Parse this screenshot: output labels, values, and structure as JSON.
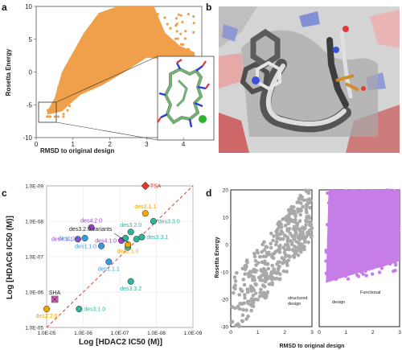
{
  "panels": {
    "a": "a",
    "b": "b",
    "c": "c",
    "d": "d"
  },
  "colors": {
    "orange": "#F0A04B",
    "gray_points": "#A9A9A9",
    "violet": "#C77DE8",
    "red": "#E0362B",
    "des_purple": "#9B3FC8",
    "des_blue": "#3A9AD9",
    "des_teal": "#2BB59A",
    "des_orange": "#F0A500",
    "sha_pink": "#E060C8"
  },
  "chart_data": [
    {
      "panel": "a",
      "type": "scatter",
      "xlabel": "RMSD to original design",
      "ylabel": "Rosetta Energy",
      "xlim": [
        0,
        4.5
      ],
      "ylim": [
        -10,
        10
      ],
      "xticks": [
        "0",
        "1",
        "2",
        "3",
        "4"
      ],
      "yticks": [
        "10",
        "5",
        "0",
        "-5",
        "-10"
      ],
      "series_color": "orange",
      "approx_envelope_points": [
        [
          0.3,
          -6
        ],
        [
          0.5,
          -4
        ],
        [
          0.7,
          0
        ],
        [
          1.0,
          3
        ],
        [
          1.3,
          6
        ],
        [
          1.7,
          9
        ],
        [
          2.2,
          10
        ],
        [
          3.2,
          10
        ],
        [
          3.5,
          6
        ],
        [
          3.9,
          4
        ],
        [
          4.3,
          3
        ]
      ],
      "highlight_box_x": [
        0.1,
        0.6
      ],
      "highlight_box_y": [
        -7.2,
        -4.4
      ]
    },
    {
      "panel": "c",
      "type": "scatter",
      "xlabel": "Log [HDAC2 IC50 (M)]",
      "ylabel": "Log [HDAC6 IC50 (M)]",
      "x_log": true,
      "y_log": true,
      "xlim": [
        1e-05,
        1e-09
      ],
      "ylim": [
        1e-05,
        1e-09
      ],
      "xticks": [
        "1.0E-05",
        "1.0E-06",
        "1.0E-07",
        "1.0E-08",
        "1.0E-09"
      ],
      "yticks": [
        "1.0E-09",
        "1.0E-08",
        "1.0E-07",
        "1.0E-06",
        "1.0E-05"
      ],
      "diagonal": true,
      "points": [
        {
          "label": "TSA",
          "x": 2e-08,
          "y": 1e-09,
          "color": "red",
          "shape": "diamond",
          "label_pos": "right"
        },
        {
          "label": "des4.2.0",
          "x": 6e-07,
          "y": 1.5e-08,
          "color": "des_purple",
          "shape": "circle",
          "label_pos": "top"
        },
        {
          "label": "des4.3.1",
          "x": 1.4e-06,
          "y": 3.2e-08,
          "color": "des_purple",
          "shape": "circle",
          "label_pos": "left"
        },
        {
          "label": "des1.1.2",
          "x": 9e-07,
          "y": 3e-08,
          "color": "des_blue",
          "shape": "circle",
          "label_pos": "left"
        },
        {
          "label": "des1.1.0",
          "x": 3.2e-07,
          "y": 5e-08,
          "color": "des_blue",
          "shape": "circle",
          "label_pos": "left"
        },
        {
          "label": "des1.1.1",
          "x": 2e-07,
          "y": 1.4e-07,
          "color": "des_blue",
          "shape": "circle",
          "label_pos": "bottom"
        },
        {
          "label": "des4.1.0",
          "x": 9e-08,
          "y": 3.5e-08,
          "color": "des_purple",
          "shape": "circle",
          "label_pos": "left"
        },
        {
          "label": "des3.2.0",
          "x": 5e-08,
          "y": 2e-08,
          "color": "des_teal",
          "shape": "circle",
          "label_pos": "top"
        },
        {
          "label": "",
          "x": 7e-08,
          "y": 3e-08,
          "color": "des_teal",
          "shape": "circle",
          "label_pos": "none"
        },
        {
          "label": "",
          "x": 3.5e-08,
          "y": 3.2e-08,
          "color": "des_teal",
          "shape": "circle",
          "label_pos": "none"
        },
        {
          "label": "",
          "x": 6e-08,
          "y": 5.5e-08,
          "color": "des_teal",
          "shape": "circle",
          "label_pos": "none"
        },
        {
          "label": "des3.3.1",
          "x": 2.5e-08,
          "y": 2.8e-08,
          "color": "des_teal",
          "shape": "circle",
          "label_pos": "right"
        },
        {
          "label": "des3.3.0",
          "x": 1.2e-08,
          "y": 1e-08,
          "color": "des_teal",
          "shape": "circle",
          "label_pos": "right"
        },
        {
          "label": "des2.1.1",
          "x": 2e-08,
          "y": 6e-09,
          "color": "des_orange",
          "shape": "circle",
          "label_pos": "top"
        },
        {
          "label": "des2.1.0",
          "x": 6e-08,
          "y": 4.5e-08,
          "color": "des_orange",
          "shape": "circle",
          "label_pos": "bottom"
        },
        {
          "label": "des3.3.2",
          "x": 5e-08,
          "y": 5e-07,
          "color": "des_teal",
          "shape": "circle",
          "label_pos": "bottom"
        },
        {
          "label": "des3.1.0",
          "x": 1.3e-06,
          "y": 3e-06,
          "color": "des_teal",
          "shape": "circle",
          "label_pos": "right"
        },
        {
          "label": "des2.2.0",
          "x": 1e-05,
          "y": 3e-06,
          "color": "des_orange",
          "shape": "circle",
          "label_pos": "bottom"
        },
        {
          "label": "SHA",
          "x": 6e-06,
          "y": 1.6e-06,
          "color": "sha_pink",
          "shape": "square",
          "label_pos": "top"
        }
      ],
      "annotation": "des3.2.0 variants"
    },
    {
      "panel": "d",
      "type": "scatter",
      "ylabel": "Rosetta Energy",
      "xlabel": "RMSD to original design",
      "ylim": [
        -30,
        20
      ],
      "yticks": [
        "20",
        "10",
        "0",
        "-10",
        "-20",
        "-30"
      ],
      "subplots": [
        {
          "name": "structured design",
          "label_lines": [
            "structured",
            "design"
          ],
          "color": "gray_points",
          "xticks": [
            "0",
            "1",
            "2",
            "3"
          ],
          "xlim": [
            0,
            3
          ]
        },
        {
          "name": "Functional design",
          "label_lines": [
            "Functional",
            "design"
          ],
          "color": "violet",
          "xticks": [
            "0",
            "1",
            "2",
            "3"
          ],
          "xlim": [
            0,
            3
          ]
        }
      ]
    }
  ]
}
